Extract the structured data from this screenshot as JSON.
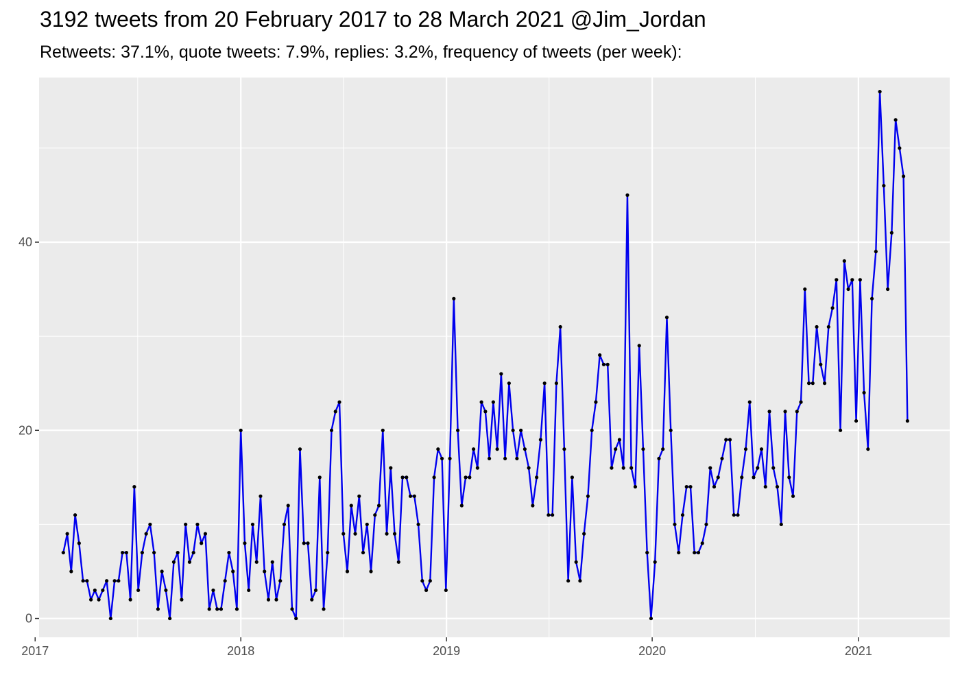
{
  "chart_data": {
    "type": "line",
    "title": "3192 tweets from 20 February 2017 to 28 March 2021 @Jim_Jordan",
    "subtitle": "Retweets: 37.1%, quote tweets: 7.9%, replies: 3.2%, frequency of tweets (per week):",
    "xlabel": "",
    "ylabel": "",
    "x_ticks": [
      "2017",
      "2018",
      "2019",
      "2020",
      "2021"
    ],
    "y_ticks": [
      0,
      20,
      40
    ],
    "xlim": [
      "2017-01-08",
      "2021-06-12"
    ],
    "ylim": [
      -2,
      57.5
    ],
    "grid": true,
    "legend": "none",
    "colors": {
      "line": "#0000ee",
      "point": "#000000",
      "panel": "#ebebeb",
      "grid": "#ffffff"
    },
    "series": [
      {
        "start": "2017-02-20",
        "interval_days": 7,
        "values": [
          7,
          9,
          5,
          11,
          8,
          4,
          4,
          2,
          3,
          2,
          3,
          4,
          0,
          4,
          4,
          7,
          7,
          2,
          14,
          3,
          7,
          9,
          10,
          7,
          1,
          5,
          3,
          0,
          6,
          7,
          2,
          10,
          6,
          7,
          10,
          8,
          9,
          1,
          3,
          1,
          1,
          4,
          7,
          5,
          1,
          20,
          8,
          3,
          10,
          6,
          13,
          5,
          2,
          6,
          2,
          4,
          10,
          12,
          1,
          0,
          18,
          8,
          8,
          2,
          3,
          15,
          1,
          7,
          20,
          22,
          23,
          9,
          5,
          12,
          9,
          13,
          7,
          10,
          5,
          11,
          12,
          20,
          9,
          16,
          9,
          6,
          15,
          15,
          13,
          13,
          10,
          4,
          3,
          4,
          15,
          18,
          17,
          3,
          17,
          34,
          20,
          12,
          15,
          15,
          18,
          16,
          23,
          22,
          17,
          23,
          18,
          26,
          17,
          25,
          20,
          17,
          20,
          18,
          16,
          12,
          15,
          19,
          25,
          11,
          11,
          25,
          31,
          18,
          4,
          15,
          6,
          4,
          9,
          13,
          20,
          23,
          28,
          27,
          27,
          16,
          18,
          19,
          16,
          45,
          16,
          14,
          29,
          18,
          7,
          0,
          6,
          17,
          18,
          32,
          20,
          10,
          7,
          11,
          14,
          14,
          7,
          7,
          8,
          10,
          16,
          14,
          15,
          17,
          19,
          19,
          11,
          11,
          15,
          18,
          23,
          15,
          16,
          18,
          14,
          22,
          16,
          14,
          10,
          22,
          15,
          13,
          22,
          23,
          35,
          25,
          25,
          31,
          27,
          25,
          31,
          33,
          36,
          20,
          38,
          35,
          36,
          21,
          36,
          24,
          18,
          34,
          39,
          56,
          46,
          35,
          41,
          53,
          50,
          47,
          21
        ]
      }
    ]
  }
}
